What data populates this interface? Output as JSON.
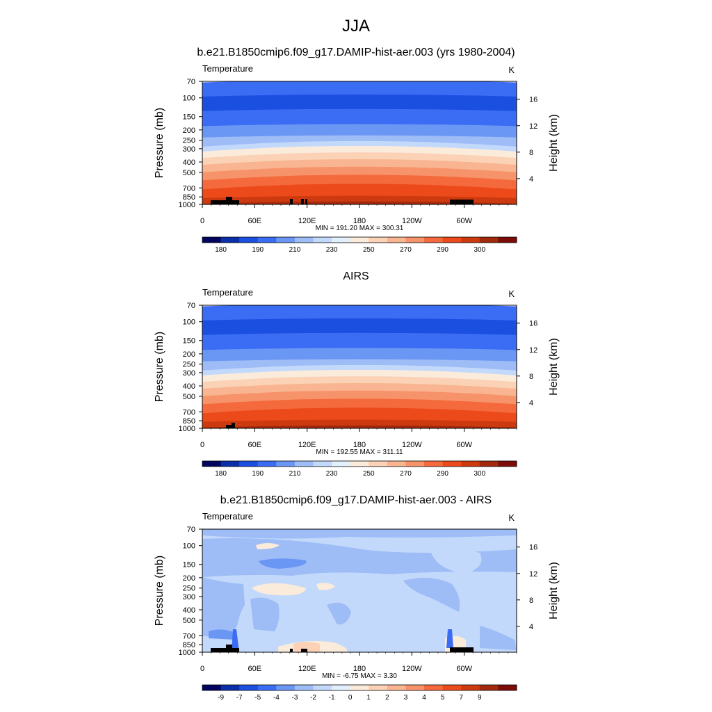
{
  "figure": {
    "title": "JJA"
  },
  "chart_data": [
    {
      "type": "heatmap",
      "title": "b.e21.B1850cmip6.f09_g17.DAMIP-hist-aer.003 (yrs 1980-2004)",
      "left_label": "Temperature",
      "right_label": "K",
      "ylabel": "Pressure (mb)",
      "ylabel_right": "Height (km)",
      "x_ticks": [
        "0",
        "60E",
        "120E",
        "180",
        "120W",
        "60W"
      ],
      "y_ticks": [
        "70",
        "100",
        "150",
        "200",
        "250",
        "300",
        "400",
        "500",
        "700",
        "850",
        "1000"
      ],
      "height_ticks": [
        "4",
        "8",
        "12",
        "16"
      ],
      "y_scale": "log",
      "stats": "MIN = 191.20  MAX = 300.31",
      "min": 191.2,
      "max": 300.31,
      "colorbar_labels": [
        "180",
        "190",
        "210",
        "230",
        "250",
        "270",
        "290",
        "300"
      ],
      "colorbar_colors": [
        "#03045e",
        "#0a2fa8",
        "#1b4fe0",
        "#3b6df4",
        "#6a96f4",
        "#9ebcf6",
        "#c3d9fb",
        "#e4effd",
        "#fbebdb",
        "#fbd2b6",
        "#f9b591",
        "#f7936a",
        "#f46a3d",
        "#ec4a1a",
        "#ce3a10",
        "#a3290c",
        "#7b0c08"
      ]
    },
    {
      "type": "heatmap",
      "title": "AIRS",
      "left_label": "Temperature",
      "right_label": "K",
      "ylabel": "Pressure (mb)",
      "ylabel_right": "Height (km)",
      "x_ticks": [
        "0",
        "60E",
        "120E",
        "180",
        "120W",
        "60W"
      ],
      "y_ticks": [
        "70",
        "100",
        "150",
        "200",
        "250",
        "300",
        "400",
        "500",
        "700",
        "850",
        "1000"
      ],
      "height_ticks": [
        "4",
        "8",
        "12",
        "16"
      ],
      "y_scale": "log",
      "stats": "MIN = 192.55  MAX = 311.11",
      "min": 192.55,
      "max": 311.11,
      "colorbar_labels": [
        "180",
        "190",
        "210",
        "230",
        "250",
        "270",
        "290",
        "300"
      ],
      "colorbar_colors": [
        "#03045e",
        "#0a2fa8",
        "#1b4fe0",
        "#3b6df4",
        "#6a96f4",
        "#9ebcf6",
        "#c3d9fb",
        "#e4effd",
        "#fbebdb",
        "#fbd2b6",
        "#f9b591",
        "#f7936a",
        "#f46a3d",
        "#ec4a1a",
        "#ce3a10",
        "#a3290c",
        "#7b0c08"
      ]
    },
    {
      "type": "heatmap",
      "title": "b.e21.B1850cmip6.f09_g17.DAMIP-hist-aer.003 - AIRS",
      "left_label": "Temperature",
      "right_label": "K",
      "ylabel": "Pressure (mb)",
      "ylabel_right": "Height (km)",
      "x_ticks": [
        "0",
        "60E",
        "120E",
        "180",
        "120W",
        "60W"
      ],
      "y_ticks": [
        "70",
        "100",
        "150",
        "200",
        "250",
        "300",
        "400",
        "500",
        "700",
        "850",
        "1000"
      ],
      "height_ticks": [
        "4",
        "8",
        "12",
        "16"
      ],
      "y_scale": "log",
      "stats": "MIN =  -6.75  MAX =   3.30",
      "min": -6.75,
      "max": 3.3,
      "colorbar_labels": [
        "-9",
        "-7",
        "-5",
        "-4",
        "-3",
        "-2",
        "-1",
        "0",
        "1",
        "2",
        "3",
        "4",
        "5",
        "7",
        "9"
      ],
      "colorbar_colors": [
        "#03045e",
        "#0a2fa8",
        "#1b4fe0",
        "#3b6df4",
        "#6a96f4",
        "#9ebcf6",
        "#c3d9fb",
        "#e4effd",
        "#fbebdb",
        "#fbd2b6",
        "#f9b591",
        "#f7936a",
        "#f46a3d",
        "#ec4a1a",
        "#ce3a10",
        "#a3290c",
        "#7b0c08"
      ]
    }
  ]
}
